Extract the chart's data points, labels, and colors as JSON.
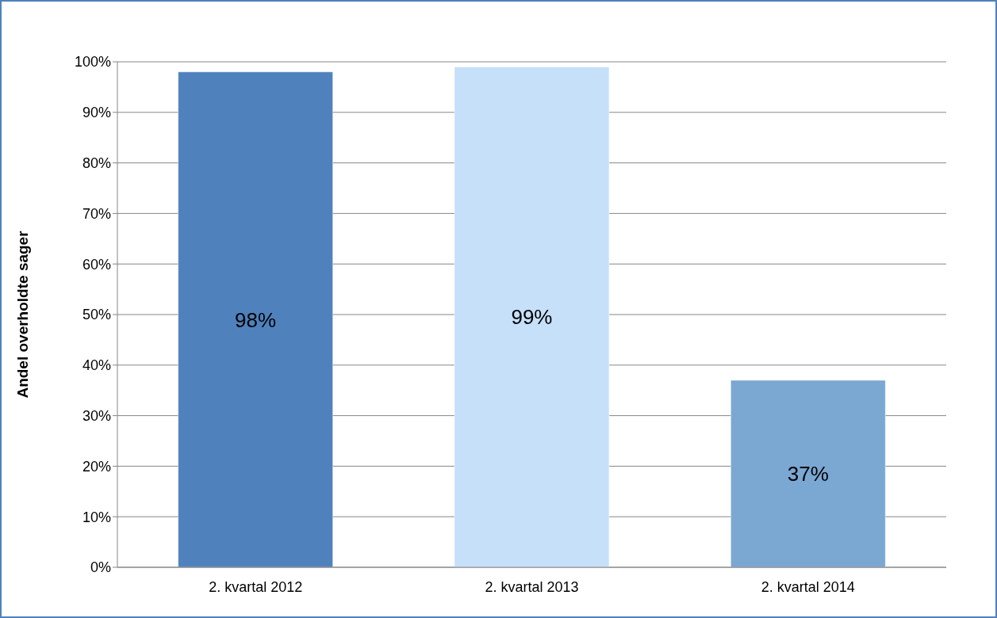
{
  "chart_data": {
    "type": "bar",
    "ylabel": "Andel overholdte sager",
    "categories": [
      "2. kvartal 2012",
      "2. kvartal 2013",
      "2. kvartal 2014"
    ],
    "values": [
      98,
      99,
      37
    ],
    "colors": [
      "#4f81bd",
      "#c6e0fa",
      "#7ba7d3"
    ],
    "value_labels": [
      "98%",
      "99%",
      "37%"
    ],
    "ylim": [
      0,
      100
    ],
    "yticks": [
      {
        "value": 0,
        "label": "0%"
      },
      {
        "value": 10,
        "label": "10%"
      },
      {
        "value": 20,
        "label": "20%"
      },
      {
        "value": 30,
        "label": "30%"
      },
      {
        "value": 40,
        "label": "40%"
      },
      {
        "value": 50,
        "label": "50%"
      },
      {
        "value": 60,
        "label": "60%"
      },
      {
        "value": 70,
        "label": "70%"
      },
      {
        "value": 80,
        "label": "80%"
      },
      {
        "value": 90,
        "label": "90%"
      },
      {
        "value": 100,
        "label": "100%"
      }
    ],
    "grid": "y"
  }
}
